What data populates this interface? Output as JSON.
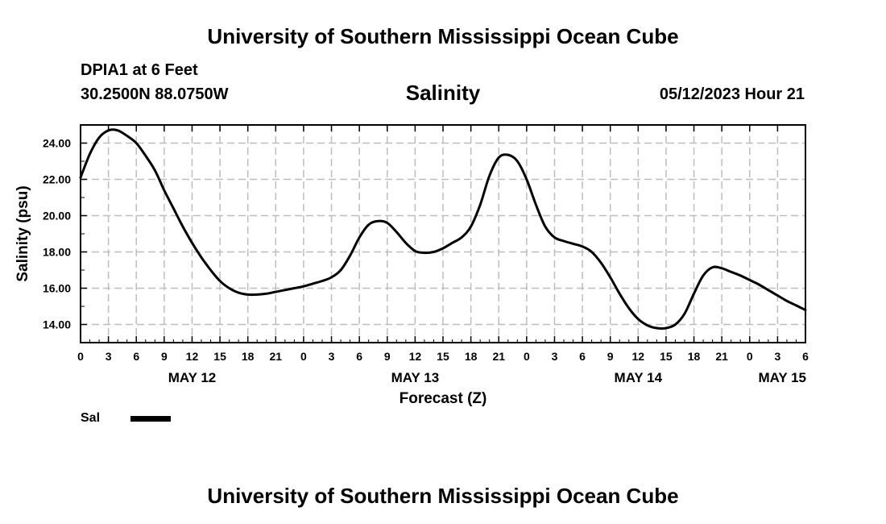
{
  "page": {
    "top_title": "University of Southern Mississippi Ocean Cube",
    "bottom_title": "University of Southern Mississippi Ocean Cube",
    "station_name": "DPIA1 at 6 Feet",
    "station_coords": "30.2500N  88.0750W",
    "timestamp": "05/12/2023 Hour 21"
  },
  "chart_data": {
    "type": "line",
    "title": "Salinity",
    "xlabel": "Forecast (Z)",
    "ylabel": "Salinity (psu)",
    "x_unit": "hours since 2023-05-12 00Z",
    "xlim": [
      0,
      78
    ],
    "ylim": [
      13,
      25
    ],
    "grid": true,
    "y_ticks": [
      14,
      16,
      18,
      20,
      22,
      24
    ],
    "y_tick_labels": [
      "14.00",
      "16.00",
      "18.00",
      "20.00",
      "22.00",
      "24.00"
    ],
    "x_ticks": [
      0,
      3,
      6,
      9,
      12,
      15,
      18,
      21,
      24,
      27,
      30,
      33,
      36,
      39,
      42,
      45,
      48,
      51,
      54,
      57,
      60,
      63,
      66,
      69,
      72,
      75,
      78
    ],
    "x_tick_labels": [
      "0",
      "3",
      "6",
      "9",
      "12",
      "15",
      "18",
      "21",
      "0",
      "3",
      "6",
      "9",
      "12",
      "15",
      "18",
      "21",
      "0",
      "3",
      "6",
      "9",
      "12",
      "15",
      "18",
      "21",
      "0",
      "3",
      "6"
    ],
    "date_labels": [
      {
        "x": 12,
        "label": "MAY 12"
      },
      {
        "x": 36,
        "label": "MAY 13"
      },
      {
        "x": 60,
        "label": "MAY 14"
      },
      {
        "x": 78,
        "label": "MAY 15"
      }
    ],
    "legend": {
      "placement": "bottom-left",
      "entries": [
        {
          "name": "Sal"
        }
      ]
    },
    "series": [
      {
        "name": "Sal",
        "color": "#000000",
        "x": [
          0,
          1,
          2,
          3,
          4,
          5,
          6,
          7,
          8,
          9,
          10,
          11,
          12,
          13,
          14,
          15,
          16,
          17,
          18,
          19,
          20,
          21,
          22,
          23,
          24,
          25,
          26,
          27,
          28,
          29,
          30,
          31,
          32,
          33,
          34,
          35,
          36,
          37,
          38,
          39,
          40,
          41,
          42,
          43,
          44,
          45,
          46,
          47,
          48,
          49,
          50,
          51,
          52,
          53,
          54,
          55,
          56,
          57,
          58,
          59,
          60,
          61,
          62,
          63,
          64,
          65,
          66,
          67,
          68,
          69,
          70,
          71,
          72,
          73,
          74,
          75,
          76,
          77,
          78
        ],
        "values": [
          22.1,
          23.4,
          24.3,
          24.7,
          24.7,
          24.4,
          24.0,
          23.3,
          22.5,
          21.4,
          20.4,
          19.4,
          18.5,
          17.7,
          17.0,
          16.4,
          16.0,
          15.75,
          15.65,
          15.65,
          15.7,
          15.8,
          15.9,
          16.0,
          16.1,
          16.25,
          16.4,
          16.6,
          17.0,
          17.8,
          18.8,
          19.5,
          19.7,
          19.6,
          19.1,
          18.5,
          18.05,
          17.95,
          18.0,
          18.2,
          18.5,
          18.8,
          19.4,
          20.6,
          22.2,
          23.2,
          23.35,
          23.0,
          22.0,
          20.6,
          19.4,
          18.8,
          18.6,
          18.45,
          18.3,
          18.0,
          17.4,
          16.6,
          15.7,
          14.9,
          14.3,
          13.95,
          13.8,
          13.8,
          14.0,
          14.6,
          15.7,
          16.7,
          17.15,
          17.1,
          16.9,
          16.7,
          16.45,
          16.2,
          15.9,
          15.6,
          15.3,
          15.05,
          14.8
        ]
      }
    ]
  }
}
